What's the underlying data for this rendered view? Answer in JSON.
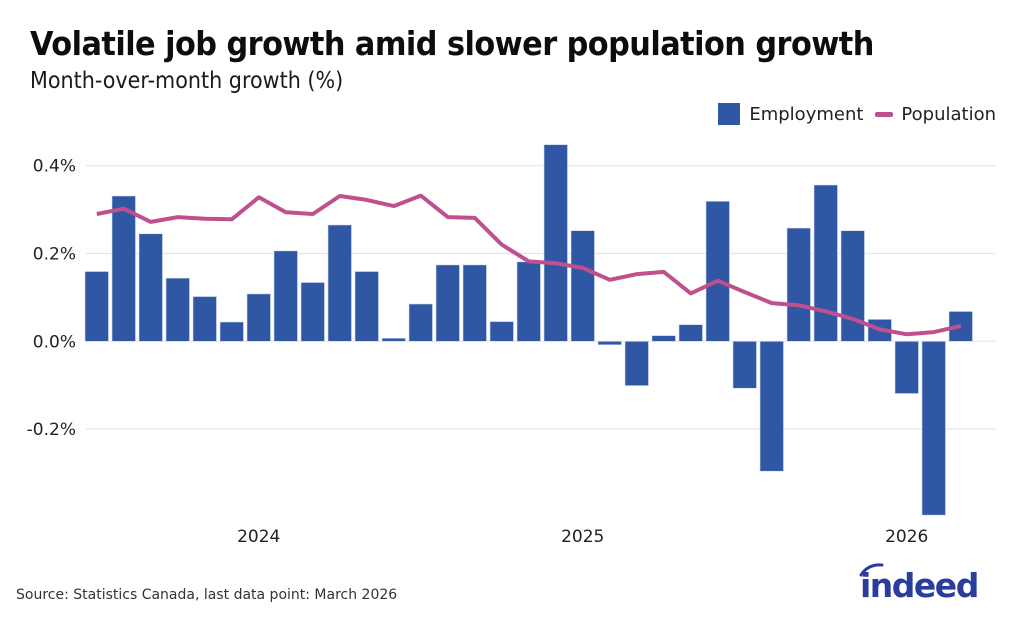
{
  "header": {
    "title": "Volatile job growth amid slower population growth",
    "subtitle": "Month-over-month growth (%)"
  },
  "footer": {
    "source": "Source: Statistics Canada, last data point: March 2026",
    "logo_text": "indeed"
  },
  "colors": {
    "employment": "#3057a4",
    "population": "#c0508d",
    "grid": "#e6e6e6",
    "logo": "#2a3c9c"
  },
  "chart_data": {
    "type": "bar",
    "title": "Volatile job growth amid slower population growth",
    "subtitle": "Month-over-month growth (%)",
    "xlabel": "",
    "ylabel": "",
    "ylim": [
      -0.4,
      0.45
    ],
    "yticks": [
      0.4,
      0.2,
      0.0,
      -0.2
    ],
    "ytick_labels": [
      "0.4%",
      "0.2%",
      "0.0%",
      "-0.2%"
    ],
    "grid": true,
    "legend": "top-right",
    "x": [
      "2023-07",
      "2023-08",
      "2023-09",
      "2023-10",
      "2023-11",
      "2023-12",
      "2024-01",
      "2024-02",
      "2024-03",
      "2024-04",
      "2024-05",
      "2024-06",
      "2024-07",
      "2024-08",
      "2024-09",
      "2024-10",
      "2024-11",
      "2024-12",
      "2025-01",
      "2025-02",
      "2025-03",
      "2025-04",
      "2025-05",
      "2025-06",
      "2025-07",
      "2025-08",
      "2025-09",
      "2025-10",
      "2025-11",
      "2025-12",
      "2026-01",
      "2026-02",
      "2026-03"
    ],
    "xtick_labels": [
      {
        "index": 6,
        "label": "2024"
      },
      {
        "index": 18,
        "label": "2025"
      },
      {
        "index": 30,
        "label": "2026"
      }
    ],
    "series": [
      {
        "name": "Employment",
        "type": "bar",
        "values": [
          0.159,
          0.331,
          0.245,
          0.144,
          0.102,
          0.044,
          0.108,
          0.206,
          0.134,
          0.265,
          0.159,
          0.007,
          0.085,
          0.174,
          0.174,
          0.045,
          0.181,
          0.448,
          0.252,
          -0.008,
          -0.101,
          0.013,
          0.038,
          0.319,
          -0.107,
          -0.296,
          0.258,
          0.356,
          0.252,
          0.05,
          -0.119,
          -0.396,
          0.068
        ]
      },
      {
        "name": "Population",
        "type": "line",
        "values": [
          0.29,
          0.302,
          0.272,
          0.283,
          0.279,
          0.278,
          0.328,
          0.294,
          0.29,
          0.331,
          0.322,
          0.308,
          0.332,
          0.283,
          0.281,
          0.22,
          0.182,
          0.178,
          0.167,
          0.14,
          0.153,
          0.158,
          0.109,
          0.138,
          0.112,
          0.087,
          0.082,
          0.068,
          0.051,
          0.027,
          0.016,
          0.021,
          0.035
        ]
      }
    ]
  }
}
